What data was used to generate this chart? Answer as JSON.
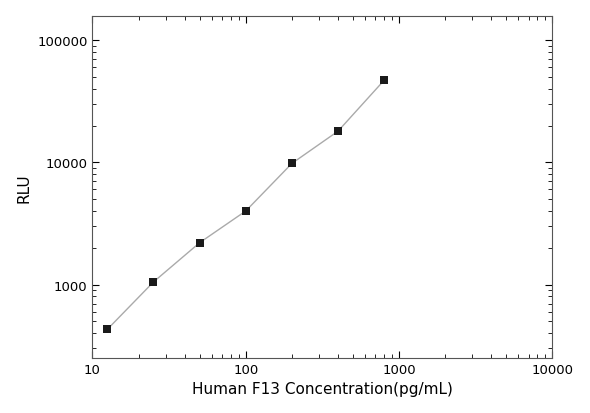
{
  "x": [
    12.5,
    25,
    50,
    100,
    200,
    400,
    800
  ],
  "y": [
    430,
    1050,
    2200,
    4000,
    9800,
    18000,
    47000
  ],
  "line_color": "#aaaaaa",
  "marker_color": "#1a1a1a",
  "marker": "s",
  "marker_size": 6,
  "line_style": "-",
  "line_width": 1.0,
  "xlabel": "Human F13 Concentration(pg/mL)",
  "ylabel": "RLU",
  "xlim": [
    10,
    10000
  ],
  "ylim_log_min": 2.4,
  "ylim_log_max": 5.2,
  "yticks": [
    1000,
    10000,
    100000
  ],
  "ytick_labels": [
    "1000",
    "10000",
    "100000"
  ],
  "xticks": [
    10,
    100,
    1000,
    10000
  ],
  "xtick_labels": [
    "10",
    "100",
    "1000",
    "10000"
  ],
  "xlabel_fontsize": 11,
  "ylabel_fontsize": 11,
  "tick_fontsize": 9.5,
  "background_color": "#ffffff",
  "figure_bg": "#ffffff"
}
